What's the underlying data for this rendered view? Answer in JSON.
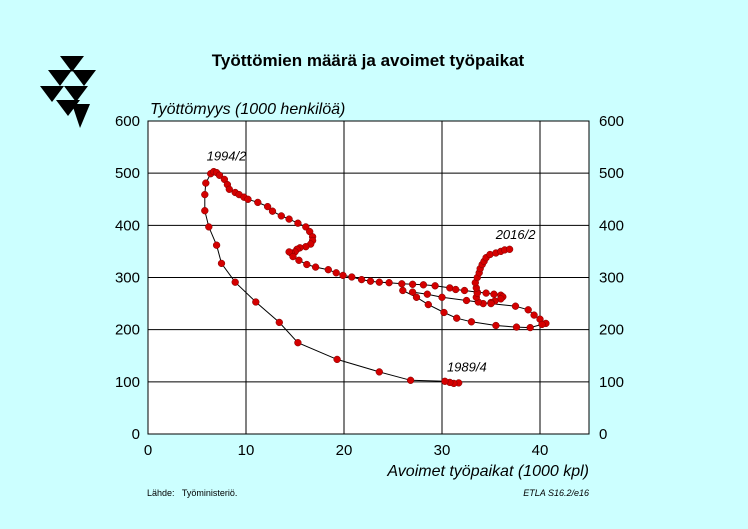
{
  "chart_data": {
    "type": "scatter",
    "title": "Työttömien määrä ja avoimet työpaikat",
    "ylabel": "Työttömyys (1000 henkilöä)",
    "xlabel": "Avoimet työpaikat (1000 kpl)",
    "xlim": [
      0,
      45
    ],
    "ylim": [
      0,
      600
    ],
    "x_ticks": [
      "0",
      "10",
      "20",
      "30",
      "40"
    ],
    "y_ticks": [
      "0",
      "100",
      "200",
      "300",
      "400",
      "500",
      "600"
    ],
    "grid": true,
    "connected": true,
    "marker_color": "#d40000",
    "line_color": "#000000",
    "annotations": [
      {
        "text": "1994/2",
        "x": 7.0,
        "y": 505
      },
      {
        "text": "2016/2",
        "x": 36.5,
        "y": 355
      },
      {
        "text": "1989/4",
        "x": 30.3,
        "y": 101
      }
    ],
    "points": [
      [
        31.7,
        98
      ],
      [
        31.2,
        97
      ],
      [
        30.8,
        99
      ],
      [
        30.3,
        101
      ],
      [
        26.8,
        103
      ],
      [
        23.6,
        119
      ],
      [
        19.3,
        143
      ],
      [
        15.3,
        175
      ],
      [
        13.4,
        214
      ],
      [
        11.0,
        253
      ],
      [
        8.9,
        291
      ],
      [
        7.5,
        327
      ],
      [
        7.0,
        362
      ],
      [
        6.2,
        397
      ],
      [
        5.8,
        428
      ],
      [
        5.8,
        459
      ],
      [
        5.9,
        481
      ],
      [
        6.4,
        499
      ],
      [
        6.7,
        503
      ],
      [
        7.0,
        501
      ],
      [
        7.3,
        496
      ],
      [
        7.8,
        488
      ],
      [
        8.1,
        478
      ],
      [
        8.3,
        469
      ],
      [
        8.9,
        463
      ],
      [
        9.3,
        459
      ],
      [
        9.8,
        454
      ],
      [
        10.2,
        450
      ],
      [
        11.2,
        444
      ],
      [
        12.2,
        436
      ],
      [
        12.7,
        427
      ],
      [
        13.6,
        418
      ],
      [
        14.4,
        412
      ],
      [
        15.3,
        404
      ],
      [
        16.1,
        397
      ],
      [
        16.5,
        388
      ],
      [
        16.8,
        378
      ],
      [
        16.8,
        371
      ],
      [
        16.6,
        364
      ],
      [
        16.1,
        359
      ],
      [
        15.5,
        357
      ],
      [
        15.2,
        354
      ],
      [
        15.0,
        349
      ],
      [
        14.6,
        347
      ],
      [
        14.4,
        349
      ],
      [
        14.8,
        340
      ],
      [
        15.4,
        333
      ],
      [
        16.2,
        325
      ],
      [
        17.1,
        320
      ],
      [
        18.4,
        315
      ],
      [
        19.2,
        309
      ],
      [
        19.9,
        304
      ],
      [
        20.8,
        301
      ],
      [
        21.8,
        296
      ],
      [
        22.7,
        293
      ],
      [
        23.6,
        291
      ],
      [
        24.6,
        290
      ],
      [
        25.9,
        288
      ],
      [
        27.0,
        287
      ],
      [
        28.1,
        286
      ],
      [
        29.3,
        284
      ],
      [
        30.8,
        280
      ],
      [
        31.4,
        277
      ],
      [
        32.3,
        275
      ],
      [
        33.6,
        272
      ],
      [
        34.5,
        270
      ],
      [
        35.3,
        268
      ],
      [
        36.0,
        266
      ],
      [
        36.2,
        263
      ],
      [
        36.0,
        259
      ],
      [
        35.4,
        255
      ],
      [
        35.0,
        252
      ],
      [
        34.2,
        250
      ],
      [
        33.7,
        253
      ],
      [
        33.5,
        262
      ],
      [
        33.6,
        270
      ],
      [
        33.5,
        280
      ],
      [
        33.4,
        290
      ],
      [
        33.6,
        300
      ],
      [
        33.8,
        309
      ],
      [
        33.9,
        317
      ],
      [
        34.1,
        325
      ],
      [
        34.3,
        331
      ],
      [
        34.5,
        338
      ],
      [
        34.9,
        344
      ],
      [
        35.5,
        347
      ],
      [
        36.0,
        350
      ],
      [
        36.4,
        353
      ],
      [
        36.9,
        354
      ]
    ],
    "points_loop2": [
      [
        27.0,
        272
      ],
      [
        28.5,
        268
      ],
      [
        30.0,
        262
      ],
      [
        32.5,
        256
      ],
      [
        35.0,
        250
      ],
      [
        37.5,
        245
      ],
      [
        38.8,
        238
      ],
      [
        39.4,
        228
      ],
      [
        40.0,
        220
      ],
      [
        40.6,
        212
      ],
      [
        40.2,
        210
      ],
      [
        39.0,
        204
      ],
      [
        37.6,
        205
      ],
      [
        35.5,
        208
      ],
      [
        33.0,
        215
      ],
      [
        31.5,
        222
      ],
      [
        30.2,
        233
      ],
      [
        28.6,
        248
      ],
      [
        27.4,
        262
      ],
      [
        26.0,
        275
      ]
    ],
    "source": "Lähde:   Työministeriö.",
    "credit": "ETLA S16.2/e16"
  }
}
